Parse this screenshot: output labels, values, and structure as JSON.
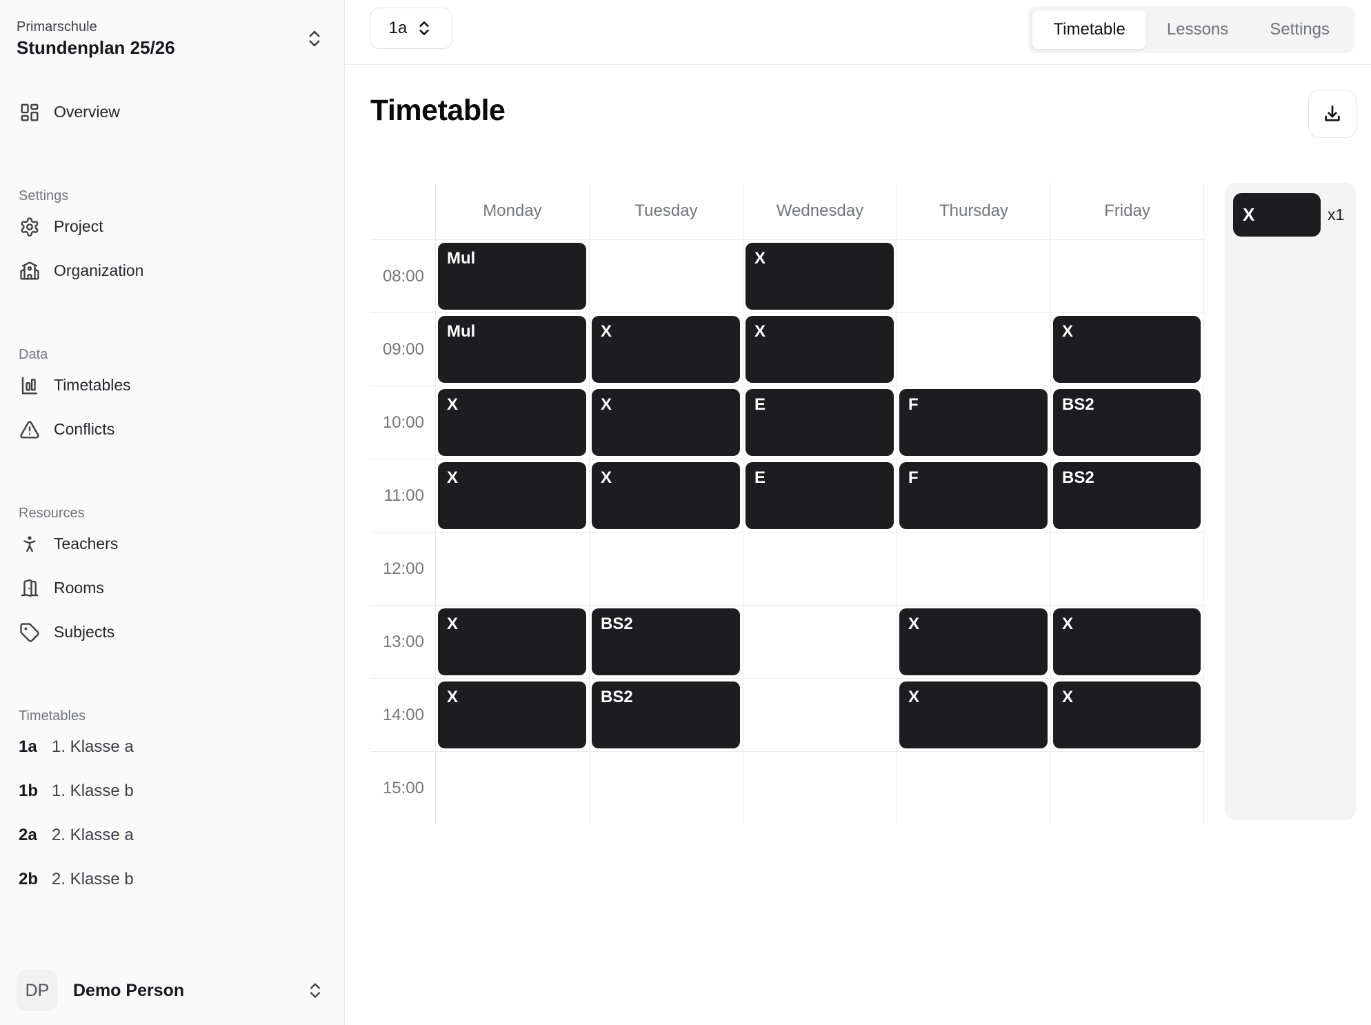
{
  "sidebar": {
    "project_label": "Primarschule",
    "project_name": "Stundenplan 25/26",
    "overview": {
      "icon": "dashboard-icon",
      "label": "Overview"
    },
    "sections": [
      {
        "label": "Settings",
        "items": [
          {
            "icon": "gear-icon",
            "label": "Project"
          },
          {
            "icon": "school-icon",
            "label": "Organization"
          }
        ]
      },
      {
        "label": "Data",
        "items": [
          {
            "icon": "bar-chart-icon",
            "label": "Timetables"
          },
          {
            "icon": "warning-icon",
            "label": "Conflicts"
          }
        ]
      },
      {
        "label": "Resources",
        "items": [
          {
            "icon": "person-icon",
            "label": "Teachers"
          },
          {
            "icon": "door-icon",
            "label": "Rooms"
          },
          {
            "icon": "tag-icon",
            "label": "Subjects"
          }
        ]
      },
      {
        "label": "Timetables",
        "items": [
          {
            "badge": "1a",
            "label": "1. Klasse a"
          },
          {
            "badge": "1b",
            "label": "1. Klasse b"
          },
          {
            "badge": "2a",
            "label": "2. Klasse a"
          },
          {
            "badge": "2b",
            "label": "2. Klasse b"
          }
        ]
      }
    ],
    "user": {
      "initials": "DP",
      "name": "Demo Person"
    }
  },
  "topbar": {
    "class_selector_value": "1a",
    "tabs": [
      {
        "label": "Timetable",
        "active": true
      },
      {
        "label": "Lessons",
        "active": false
      },
      {
        "label": "Settings",
        "active": false
      }
    ]
  },
  "main": {
    "title": "Timetable"
  },
  "timetable": {
    "days": [
      "Monday",
      "Tuesday",
      "Wednesday",
      "Thursday",
      "Friday"
    ],
    "times": [
      "08:00",
      "09:00",
      "10:00",
      "11:00",
      "12:00",
      "13:00",
      "14:00",
      "15:00"
    ],
    "events": [
      {
        "time": "08:00",
        "day": "Monday",
        "label": "Mul"
      },
      {
        "time": "08:00",
        "day": "Wednesday",
        "label": "X"
      },
      {
        "time": "09:00",
        "day": "Monday",
        "label": "Mul"
      },
      {
        "time": "09:00",
        "day": "Tuesday",
        "label": "X"
      },
      {
        "time": "09:00",
        "day": "Wednesday",
        "label": "X"
      },
      {
        "time": "09:00",
        "day": "Friday",
        "label": "X"
      },
      {
        "time": "10:00",
        "day": "Monday",
        "label": "X"
      },
      {
        "time": "10:00",
        "day": "Tuesday",
        "label": "X"
      },
      {
        "time": "10:00",
        "day": "Wednesday",
        "label": "E"
      },
      {
        "time": "10:00",
        "day": "Thursday",
        "label": "F"
      },
      {
        "time": "10:00",
        "day": "Friday",
        "label": "BS2"
      },
      {
        "time": "11:00",
        "day": "Monday",
        "label": "X"
      },
      {
        "time": "11:00",
        "day": "Tuesday",
        "label": "X"
      },
      {
        "time": "11:00",
        "day": "Wednesday",
        "label": "E"
      },
      {
        "time": "11:00",
        "day": "Thursday",
        "label": "F"
      },
      {
        "time": "11:00",
        "day": "Friday",
        "label": "BS2"
      },
      {
        "time": "13:00",
        "day": "Monday",
        "label": "X"
      },
      {
        "time": "13:00",
        "day": "Tuesday",
        "label": "BS2"
      },
      {
        "time": "13:00",
        "day": "Thursday",
        "label": "X"
      },
      {
        "time": "13:00",
        "day": "Friday",
        "label": "X"
      },
      {
        "time": "14:00",
        "day": "Monday",
        "label": "X"
      },
      {
        "time": "14:00",
        "day": "Tuesday",
        "label": "BS2"
      },
      {
        "time": "14:00",
        "day": "Thursday",
        "label": "X"
      },
      {
        "time": "14:00",
        "day": "Friday",
        "label": "X"
      }
    ]
  },
  "unscheduled": {
    "label": "X",
    "count": "x1"
  },
  "colors": {
    "event_block": "#1d1d1f",
    "accent_text": "#18181b"
  }
}
